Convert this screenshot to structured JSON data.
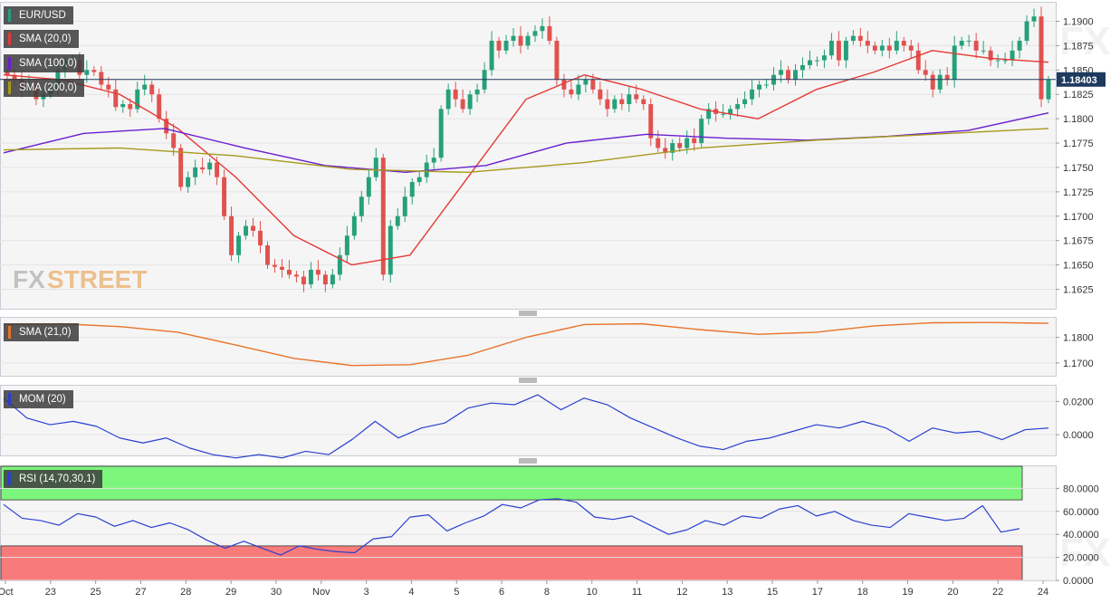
{
  "chart_data": {
    "type": "candlestick",
    "symbol": "EUR/USD",
    "x_ticks": [
      "Oct",
      "23",
      "25",
      "27",
      "28",
      "29",
      "30",
      "Nov",
      "3",
      "4",
      "5",
      "6",
      "8",
      "10",
      "11",
      "12",
      "13",
      "15",
      "17",
      "18",
      "19",
      "20",
      "22",
      "24"
    ],
    "price": {
      "ylim": [
        1.1605,
        1.192
      ],
      "y_ticks": [
        "1.1900",
        "1.1875",
        "1.1850",
        "1.1825",
        "1.1800",
        "1.1775",
        "1.1750",
        "1.1725",
        "1.1700",
        "1.1675",
        "1.1650",
        "1.1625"
      ],
      "last_price_label": "1.18403",
      "last_price": 1.18403,
      "close_series": [
        1.1845,
        1.184,
        1.183,
        1.1835,
        1.182,
        1.1825,
        1.183,
        1.185,
        1.186,
        1.186,
        1.1845,
        1.185,
        1.1848,
        1.1835,
        1.183,
        1.1812,
        1.1815,
        1.181,
        1.183,
        1.1835,
        1.1825,
        1.18,
        1.1785,
        1.177,
        1.173,
        1.174,
        1.175,
        1.1748,
        1.1755,
        1.174,
        1.17,
        1.166,
        1.168,
        1.169,
        1.1685,
        1.167,
        1.165,
        1.1648,
        1.1645,
        1.164,
        1.1638,
        1.163,
        1.1645,
        1.164,
        1.163,
        1.164,
        1.166,
        1.168,
        1.17,
        1.172,
        1.174,
        1.176,
        1.164,
        1.169,
        1.17,
        1.172,
        1.1735,
        1.174,
        1.1755,
        1.176,
        1.181,
        1.183,
        1.182,
        1.181,
        1.1825,
        1.183,
        1.185,
        1.188,
        1.187,
        1.188,
        1.1885,
        1.1875,
        1.1885,
        1.189,
        1.1895,
        1.188,
        1.184,
        1.183,
        1.1825,
        1.1835,
        1.184,
        1.183,
        1.182,
        1.181,
        1.182,
        1.1815,
        1.1825,
        1.182,
        1.1815,
        1.178,
        1.177,
        1.1765,
        1.1775,
        1.177,
        1.178,
        1.1775,
        1.18,
        1.181,
        1.1805,
        1.1805,
        1.181,
        1.1815,
        1.182,
        1.183,
        1.1835,
        1.1835,
        1.1845,
        1.185,
        1.184,
        1.185,
        1.1855,
        1.186,
        1.186,
        1.1865,
        1.188,
        1.186,
        1.188,
        1.1885,
        1.188,
        1.1875,
        1.187,
        1.1875,
        1.187,
        1.188,
        1.1875,
        1.187,
        1.185,
        1.1845,
        1.183,
        1.1845,
        1.184,
        1.1875,
        1.188,
        1.188,
        1.187,
        1.187,
        1.186,
        1.186,
        1.186,
        1.187,
        1.188,
        1.19,
        1.1905,
        1.182,
        1.184
      ],
      "series": [
        {
          "name": "SMA (20,0)",
          "color": "#e53935",
          "values": [
            1.1845,
            1.184,
            1.1825,
            1.179,
            1.174,
            1.168,
            1.165,
            1.166,
            1.174,
            1.182,
            1.1845,
            1.183,
            1.181,
            1.18,
            1.183,
            1.1848,
            1.187,
            1.1862,
            1.1858
          ]
        },
        {
          "name": "SMA (100,0)",
          "color": "#6a1fd0",
          "values": [
            1.1765,
            1.1785,
            1.179,
            1.177,
            1.1752,
            1.1745,
            1.1752,
            1.1775,
            1.1784,
            1.178,
            1.1778,
            1.1782,
            1.1788,
            1.1806
          ]
        },
        {
          "name": "SMA (200,0)",
          "color": "#a59a1b",
          "values": [
            1.1768,
            1.177,
            1.1762,
            1.1748,
            1.1745,
            1.1755,
            1.177,
            1.1778,
            1.1784,
            1.179
          ]
        }
      ]
    },
    "sma21": {
      "name": "SMA (21,0)",
      "color": "#e8742a",
      "y_ticks": [
        "1.1800",
        "1.1700"
      ],
      "ylim": [
        1.165,
        1.188
      ],
      "values": [
        1.185,
        1.1853,
        1.1842,
        1.182,
        1.177,
        1.1718,
        1.169,
        1.1693,
        1.173,
        1.18,
        1.185,
        1.1853,
        1.183,
        1.1812,
        1.182,
        1.1845,
        1.1857,
        1.1858,
        1.1855
      ]
    },
    "mom": {
      "name": "MOM (20)",
      "color": "#2a3fd1",
      "y_ticks": [
        "0.0200",
        "0.0000"
      ],
      "ylim": [
        -0.0125,
        0.03
      ],
      "values": [
        0.022,
        0.01,
        0.006,
        0.008,
        0.005,
        -0.002,
        -0.005,
        -0.002,
        -0.008,
        -0.012,
        -0.014,
        -0.012,
        -0.014,
        -0.01,
        -0.012,
        -0.003,
        0.008,
        -0.002,
        0.004,
        0.007,
        0.016,
        0.019,
        0.018,
        0.024,
        0.015,
        0.022,
        0.018,
        0.01,
        0.004,
        -0.002,
        -0.007,
        -0.009,
        -0.004,
        -0.002,
        0.002,
        0.006,
        0.004,
        0.008,
        0.004,
        -0.004,
        0.004,
        0.001,
        0.002,
        -0.003,
        0.003,
        0.004
      ]
    },
    "rsi": {
      "name": "RSI (14,70,30,1)",
      "color": "#2a3fd1",
      "y_ticks": [
        "80.0000",
        "60.0000",
        "40.0000",
        "20.0000",
        "0.0000"
      ],
      "ylim": [
        0,
        100
      ],
      "overbought": 70,
      "oversold": 30,
      "values": [
        66,
        54,
        52,
        48,
        58,
        55,
        47,
        52,
        46,
        50,
        44,
        35,
        28,
        34,
        28,
        22,
        30,
        27,
        25,
        24,
        36,
        38,
        55,
        57,
        43,
        50,
        56,
        66,
        63,
        70,
        71,
        68,
        55,
        53,
        56,
        48,
        40,
        44,
        52,
        48,
        56,
        54,
        62,
        65,
        56,
        60,
        52,
        48,
        46,
        58,
        55,
        52,
        54,
        65,
        42,
        45
      ]
    }
  }
}
